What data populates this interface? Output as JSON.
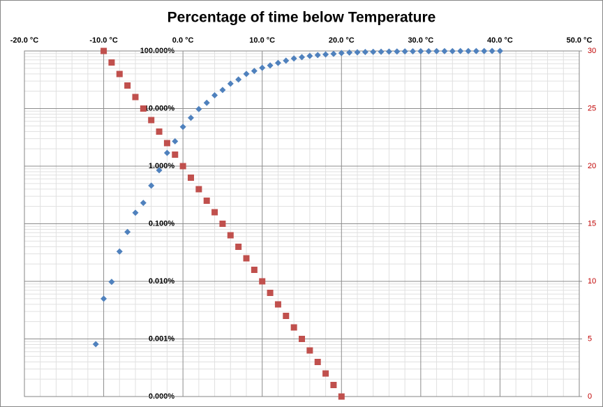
{
  "chart_data": {
    "type": "scatter",
    "title": "Percentage of time below Temperature",
    "xlim": [
      -20,
      50
    ],
    "xticks": [
      {
        "value": -20,
        "label": "-20.0 °C"
      },
      {
        "value": -10,
        "label": "-10.0 °C"
      },
      {
        "value": 0,
        "label": "0.0 °C"
      },
      {
        "value": 10,
        "label": "10.0 °C"
      },
      {
        "value": 20,
        "label": "20.0 °C"
      },
      {
        "value": 30,
        "label": "30.0 °C"
      },
      {
        "value": 40,
        "label": "40.0 °C"
      },
      {
        "value": 50,
        "label": "50.0 °C"
      }
    ],
    "ylim": [
      0.0001,
      100
    ],
    "yscale": "log",
    "yticks": [
      {
        "value": 0.0001,
        "label": "0.000%"
      },
      {
        "value": 0.001,
        "label": "0.001%"
      },
      {
        "value": 0.01,
        "label": "0.010%"
      },
      {
        "value": 0.1,
        "label": "0.100%"
      },
      {
        "value": 1,
        "label": "1.000%"
      },
      {
        "value": 10,
        "label": "10.000%"
      },
      {
        "value": 100,
        "label": "100.000%"
      }
    ],
    "y2lim": [
      0,
      30
    ],
    "y2ticks": [
      0,
      5,
      10,
      15,
      20,
      25,
      30
    ],
    "y2color": "#c00000",
    "grid": true,
    "series": [
      {
        "color": "#4f81bd",
        "marker": "diamond",
        "x": [
          -11,
          -10,
          -9,
          -8,
          -7,
          -6,
          -5,
          -4,
          -3,
          -2,
          -1,
          0,
          1,
          2,
          3,
          4,
          5,
          6,
          7,
          8,
          9,
          10,
          11,
          12,
          13,
          14,
          15,
          16,
          17,
          18,
          19,
          20,
          21,
          22,
          23,
          24,
          25,
          26,
          27,
          28,
          29,
          30,
          31,
          32,
          33,
          34,
          35,
          36,
          37,
          38,
          39,
          40
        ],
        "values": [
          0.00081,
          0.005,
          0.0098,
          0.033,
          0.072,
          0.155,
          0.23,
          0.46,
          0.85,
          1.7,
          2.7,
          4.8,
          6.9,
          9.8,
          12.6,
          17,
          21,
          27,
          32,
          40,
          45,
          51,
          56,
          62,
          68,
          74,
          78,
          82,
          85,
          87,
          89,
          92,
          94,
          95,
          96,
          96.5,
          97,
          97.5,
          98,
          98.3,
          98.6,
          98.8,
          99,
          99.2,
          99.3,
          99.4,
          99.5,
          99.6,
          99.7,
          99.8,
          99.9,
          100
        ]
      },
      {
        "color": "#c0504d",
        "marker": "square",
        "axis": "y2",
        "x": [
          -10,
          -9,
          -8,
          -7,
          -6,
          -5,
          -4,
          -3,
          -2,
          -1,
          0,
          1,
          2,
          3,
          4,
          5,
          6,
          7,
          8,
          9,
          10,
          11,
          12,
          13,
          14,
          15,
          16,
          17,
          18,
          19,
          20
        ],
        "values": [
          30,
          29,
          28,
          27,
          26,
          25,
          24,
          23,
          22,
          21,
          20,
          19,
          18,
          17,
          16,
          15,
          14,
          13,
          12,
          11,
          10,
          9,
          8,
          7,
          6,
          5,
          4,
          3,
          2,
          1,
          0
        ]
      }
    ]
  }
}
